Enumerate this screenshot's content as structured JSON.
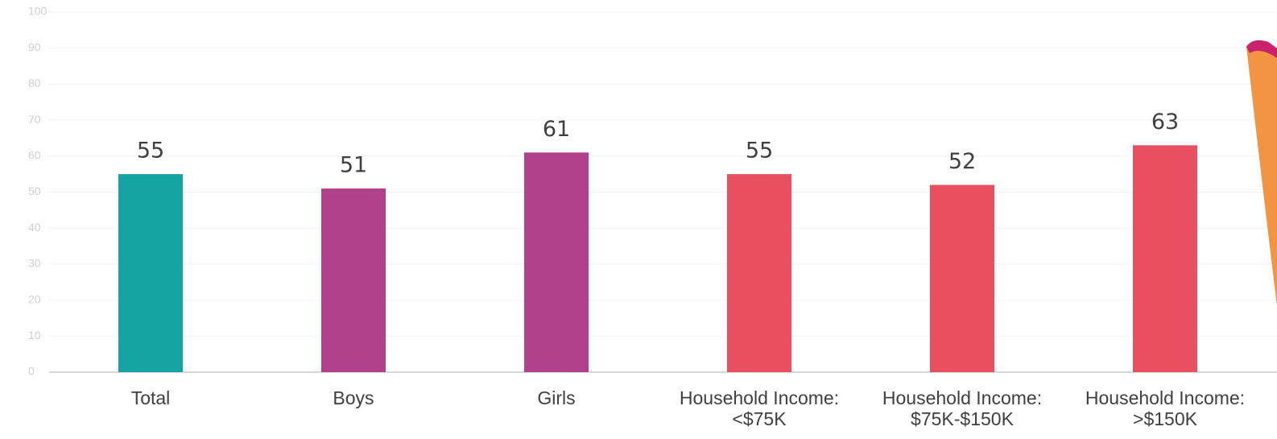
{
  "chart_data": {
    "type": "bar",
    "categories": [
      "Total",
      "Boys",
      "Girls",
      "Household Income: <$75K",
      "Household Income: $75K-$150K",
      "Household Income: >$150K"
    ],
    "values": [
      55,
      51,
      61,
      55,
      52,
      63
    ],
    "colors": [
      "#16a3a4",
      "#b1418b",
      "#b1418b",
      "#e8505f",
      "#e8505f",
      "#e8505f"
    ],
    "ylim": [
      0,
      100
    ],
    "yticks": [
      0,
      10,
      20,
      30,
      40,
      50,
      60,
      70,
      80,
      90,
      100
    ],
    "grid": true
  }
}
